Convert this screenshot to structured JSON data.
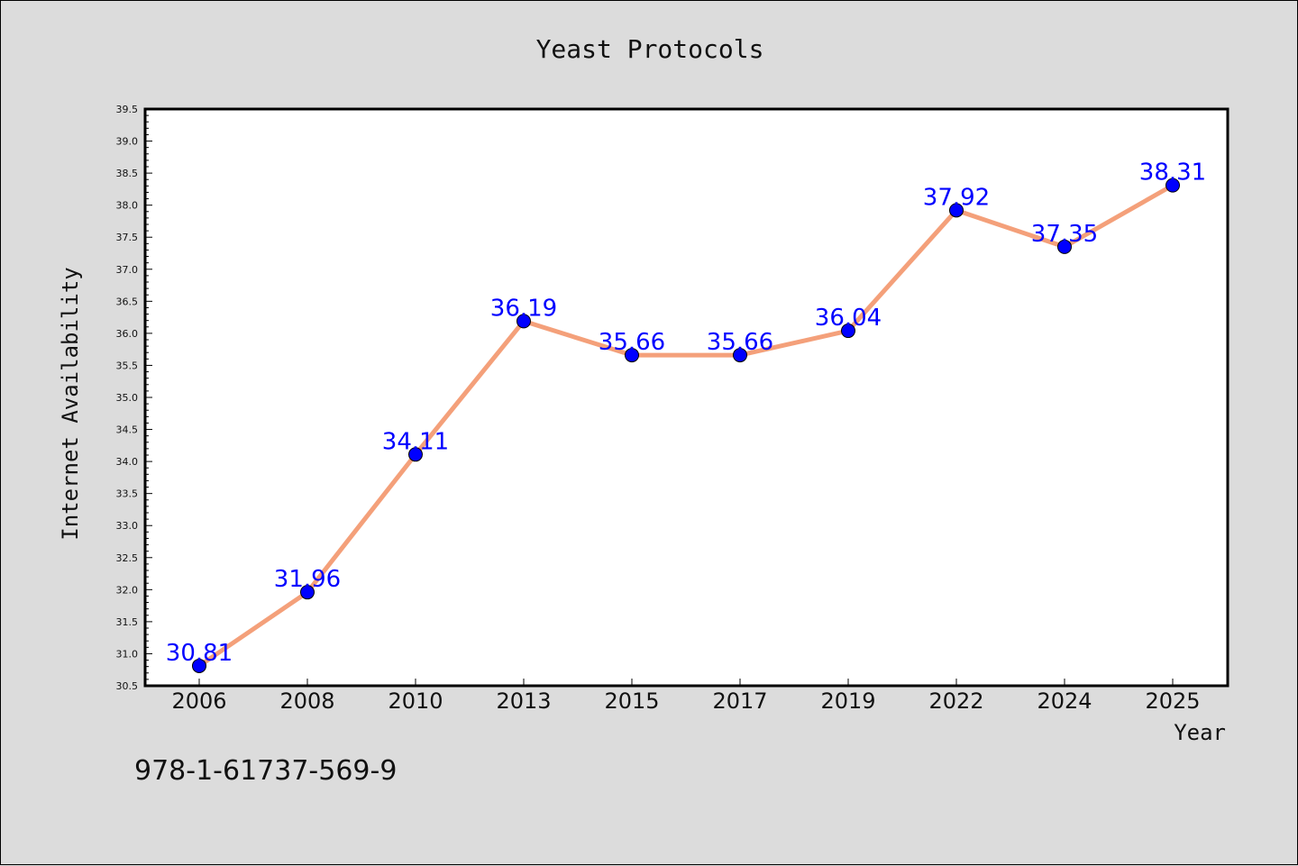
{
  "footer": {
    "isbn": "978-1-61737-569-9"
  },
  "colors": {
    "line": "#f4a07a",
    "marker": "#0000ff",
    "label": "#0000ff",
    "background": "#dcdcdc",
    "plot_bg": "#ffffff"
  },
  "chart_data": {
    "type": "line",
    "title": "Yeast Protocols",
    "xlabel": "Year",
    "ylabel": "Internet Availability",
    "categories": [
      "2006",
      "2008",
      "2010",
      "2013",
      "2015",
      "2017",
      "2019",
      "2022",
      "2024",
      "2025"
    ],
    "values": [
      30.81,
      31.96,
      34.11,
      36.19,
      35.66,
      35.66,
      36.04,
      37.92,
      37.35,
      38.31
    ],
    "data_labels": [
      "30.81",
      "31.96",
      "34.11",
      "36.19",
      "35.66",
      "35.66",
      "36.04",
      "37.92",
      "37.35",
      "38.31"
    ],
    "ylim": [
      30.5,
      39.5
    ],
    "yticks": [
      "30.5",
      "31.0",
      "31.5",
      "32.0",
      "32.5",
      "33.0",
      "33.5",
      "34.0",
      "34.5",
      "35.0",
      "35.5",
      "36.0",
      "36.5",
      "37.0",
      "37.5",
      "38.0",
      "38.5",
      "39.0",
      "39.5"
    ],
    "grid": false,
    "legend": "none"
  }
}
